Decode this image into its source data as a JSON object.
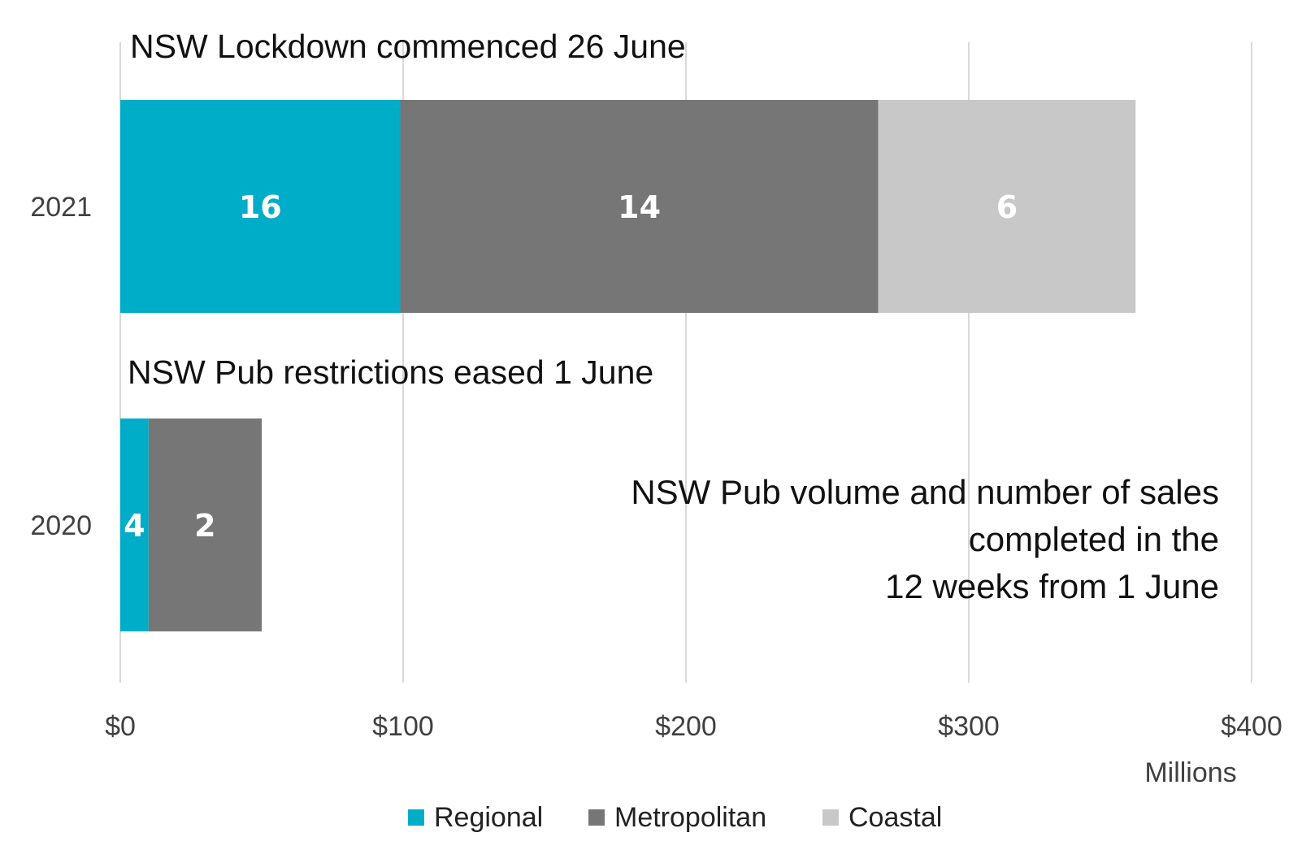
{
  "chart_data": {
    "type": "bar",
    "orientation": "horizontal",
    "stacked": true,
    "categories": [
      "2021",
      "2020"
    ],
    "series": [
      {
        "name": "Regional",
        "color": "#00adc8",
        "values": [
          99,
          10
        ],
        "labels": [
          "16",
          "4"
        ]
      },
      {
        "name": "Metropolitan",
        "color": "#767676",
        "values": [
          169,
          40
        ],
        "labels": [
          "14",
          "2"
        ]
      },
      {
        "name": "Coastal",
        "color": "#c8c8c8",
        "values": [
          91,
          0
        ],
        "labels": [
          "6",
          ""
        ]
      }
    ],
    "xlim": [
      0,
      400
    ],
    "xticks": [
      0,
      100,
      200,
      300,
      400
    ],
    "xtick_labels": [
      "$0",
      "$100",
      "$200",
      "$300",
      "$400"
    ],
    "x_unit_label": "Millions",
    "annotations": [
      "NSW Lockdown commenced 26 June",
      "NSW Pub restrictions eased 1 June"
    ],
    "subtitle_lines": [
      "NSW Pub volume and number of sales",
      "completed in the",
      "12 weeks from 1 June"
    ],
    "grid": "vertical",
    "legend_position": "bottom-center"
  }
}
